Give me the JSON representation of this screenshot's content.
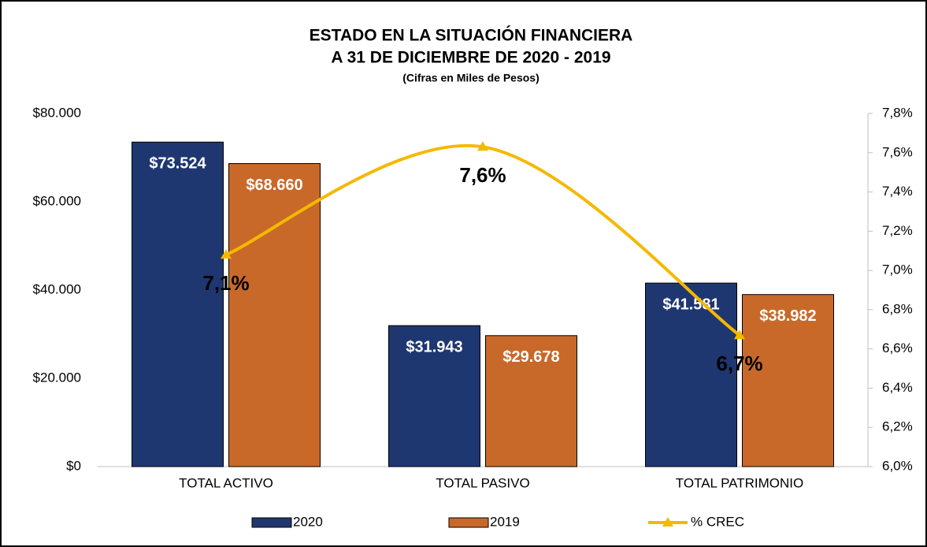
{
  "chart_data": {
    "type": "bar",
    "title": [
      "ESTADO EN LA SITUACIÓN FINANCIERA",
      "A 31 DE DICIEMBRE DE 2020 - 2019"
    ],
    "subtitle": "(Cifras en Miles de Pesos)",
    "categories": [
      "TOTAL ACTIVO",
      "TOTAL PASIVO",
      "TOTAL PATRIMONIO"
    ],
    "series": [
      {
        "name": "2020",
        "color": "#1f3770",
        "values": [
          73524,
          31943,
          41581
        ],
        "value_labels": [
          "$73.524",
          "$31.943",
          "$41.581"
        ]
      },
      {
        "name": "2019",
        "color": "#c8692a",
        "values": [
          68660,
          29678,
          38982
        ],
        "value_labels": [
          "$68.660",
          "$29.678",
          "$38.982"
        ]
      },
      {
        "name": "% CREC",
        "type": "line",
        "axis": "y2",
        "color": "#f5b800",
        "values": [
          7.08,
          7.63,
          6.67
        ],
        "value_labels": [
          "7,1%",
          "7,6%",
          "6,7%"
        ]
      }
    ],
    "ylim": [
      0,
      80000
    ],
    "yticks": [
      {
        "value": 0,
        "label": "$0"
      },
      {
        "value": 20000,
        "label": "$20.000"
      },
      {
        "value": 40000,
        "label": "$40.000"
      },
      {
        "value": 60000,
        "label": "$60.000"
      },
      {
        "value": 80000,
        "label": "$80.000"
      }
    ],
    "y2lim": [
      6.0,
      7.8
    ],
    "y2ticks": [
      {
        "value": 6.0,
        "label": "6,0%"
      },
      {
        "value": 6.2,
        "label": "6,2%"
      },
      {
        "value": 6.4,
        "label": "6,4%"
      },
      {
        "value": 6.6,
        "label": "6,6%"
      },
      {
        "value": 6.8,
        "label": "6,8%"
      },
      {
        "value": 7.0,
        "label": "7,0%"
      },
      {
        "value": 7.2,
        "label": "7,2%"
      },
      {
        "value": 7.4,
        "label": "7,4%"
      },
      {
        "value": 7.6,
        "label": "7,6%"
      },
      {
        "value": 7.8,
        "label": "7,8%"
      }
    ],
    "legend": "bottom"
  }
}
